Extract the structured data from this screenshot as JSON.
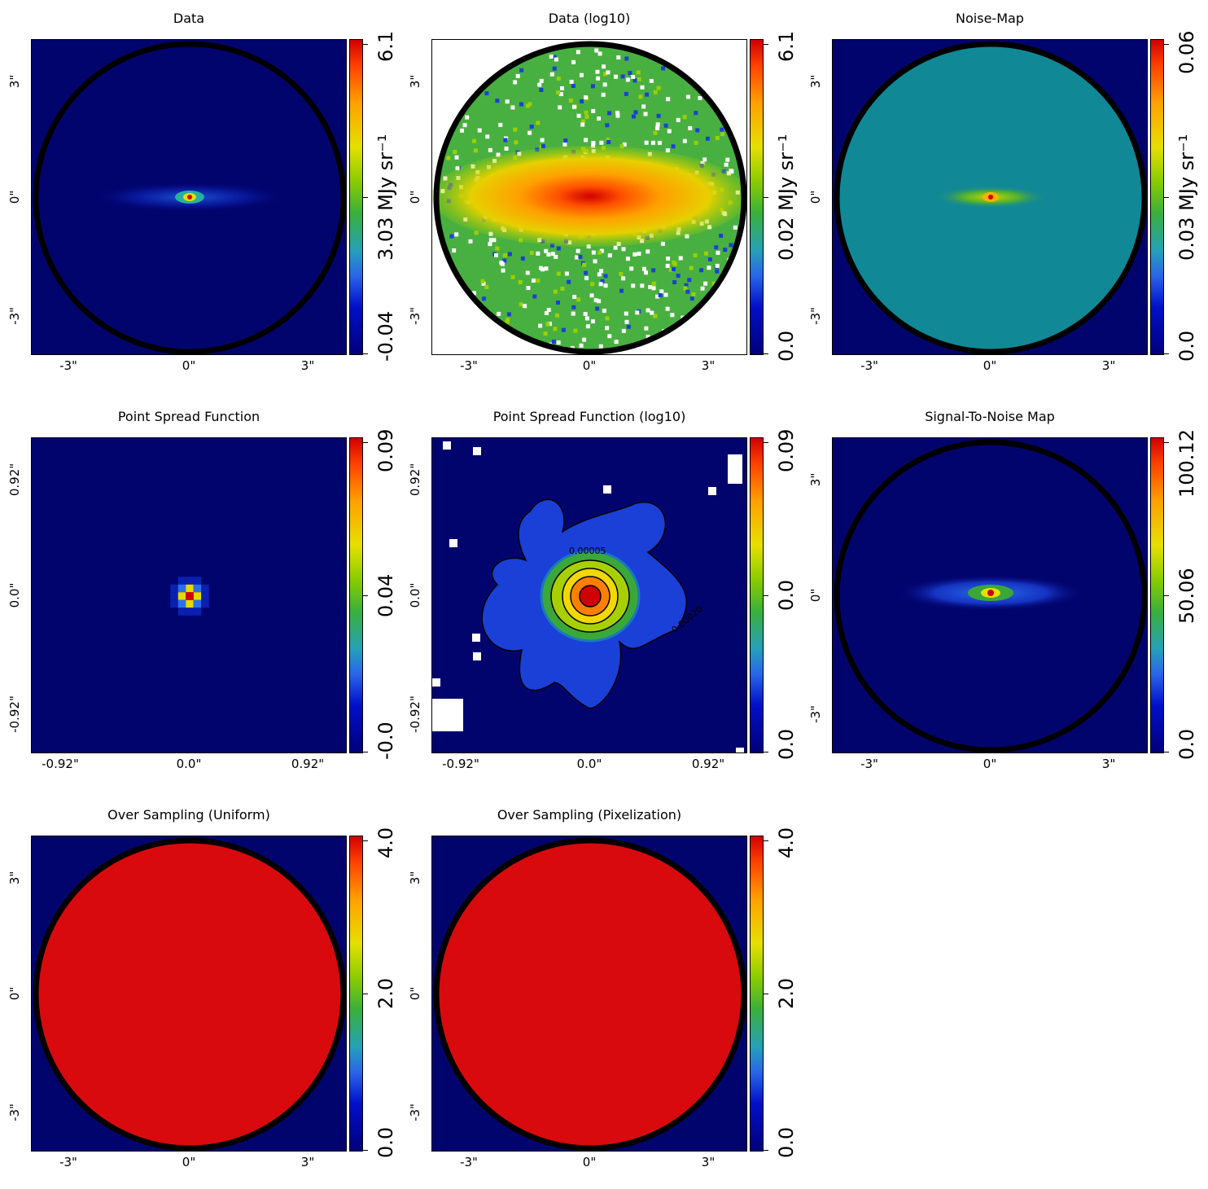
{
  "chart_data": [
    {
      "type": "heatmap",
      "title": "Data",
      "xticks": [
        "-3\"",
        "0\"",
        "3\""
      ],
      "yticks": [
        "3\"",
        "0\"",
        "-3\""
      ],
      "colorbar": {
        "ticks": [
          "-0.04",
          "3.03",
          "6.1"
        ],
        "unit": "MJy sr⁻¹"
      },
      "content": "masked-galaxy-linear"
    },
    {
      "type": "heatmap",
      "title": "Data (log10)",
      "xticks": [
        "-3\"",
        "0\"",
        "3\""
      ],
      "yticks": [
        "3\"",
        "0\"",
        "-3\""
      ],
      "colorbar": {
        "ticks": [
          "0.0",
          "0.02",
          "6.1"
        ],
        "unit": "MJy sr⁻¹"
      },
      "content": "masked-galaxy-log"
    },
    {
      "type": "heatmap",
      "title": "Noise-Map",
      "xticks": [
        "-3\"",
        "0\"",
        "3\""
      ],
      "yticks": [
        "3\"",
        "0\"",
        "-3\""
      ],
      "colorbar": {
        "ticks": [
          "0.0",
          "0.03",
          "0.06"
        ],
        "unit": "MJy sr⁻¹"
      },
      "content": "noise-map"
    },
    {
      "type": "heatmap",
      "title": "Point Spread Function",
      "xticks": [
        "-0.92\"",
        "0.0\"",
        "0.92\""
      ],
      "yticks": [
        "0.92\"",
        "0.0\"",
        "-0.92\""
      ],
      "colorbar": {
        "ticks": [
          "-0.0",
          "0.04",
          "0.09"
        ],
        "unit": ""
      },
      "content": "psf-linear"
    },
    {
      "type": "heatmap",
      "title": "Point Spread Function (log10)",
      "xticks": [
        "-0.92\"",
        "0.0\"",
        "0.92\""
      ],
      "yticks": [
        "0.92\"",
        "0.0\"",
        "-0.92\""
      ],
      "colorbar": {
        "ticks": [
          "0.0",
          "0.0",
          "0.09"
        ],
        "unit": ""
      },
      "contour_labels": [
        "0.00005",
        "0.00020"
      ],
      "content": "psf-log"
    },
    {
      "type": "heatmap",
      "title": "Signal-To-Noise Map",
      "xticks": [
        "-3\"",
        "0\"",
        "3\""
      ],
      "yticks": [
        "3\"",
        "0\"",
        "-3\""
      ],
      "colorbar": {
        "ticks": [
          "0.0",
          "50.06",
          "100.12"
        ],
        "unit": ""
      },
      "content": "snr-map"
    },
    {
      "type": "heatmap",
      "title": "Over Sampling (Uniform)",
      "xticks": [
        "-3\"",
        "0\"",
        "3\""
      ],
      "yticks": [
        "3\"",
        "0\"",
        "-3\""
      ],
      "colorbar": {
        "ticks": [
          "0.0",
          "2.0",
          "4.0"
        ],
        "unit": ""
      },
      "content": "oversampling"
    },
    {
      "type": "heatmap",
      "title": "Over Sampling (Pixelization)",
      "xticks": [
        "-3\"",
        "0\"",
        "3\""
      ],
      "yticks": [
        "3\"",
        "0\"",
        "-3\""
      ],
      "colorbar": {
        "ticks": [
          "0.0",
          "2.0",
          "4.0"
        ],
        "unit": ""
      },
      "content": "oversampling"
    }
  ]
}
